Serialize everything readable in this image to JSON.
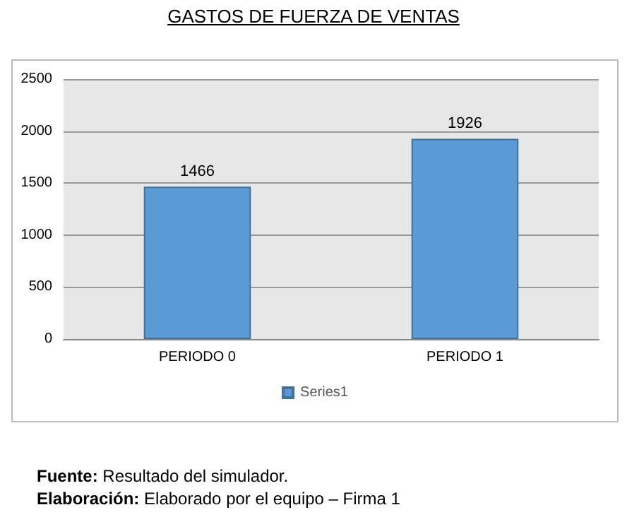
{
  "chart_data": {
    "type": "bar",
    "title": "GASTOS DE FUERZA DE VENTAS",
    "categories": [
      "PERIODO 0",
      "PERIODO 1"
    ],
    "series": [
      {
        "name": "Series1",
        "color": "#5b9bd5",
        "values": [
          1466,
          1926
        ]
      }
    ],
    "ylim": [
      0,
      2500
    ],
    "yticks": [
      0,
      500,
      1000,
      1500,
      2000,
      2500
    ],
    "grid": "y",
    "legend": "bottom",
    "data_labels": true,
    "annotations": [
      "Fuente: Resultado del simulador.",
      "Elaboración: Elaborado por el equipo – Firma 1"
    ]
  }
}
